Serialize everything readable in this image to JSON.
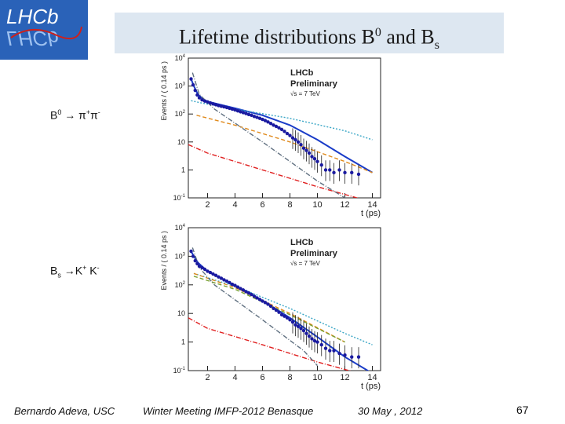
{
  "slide": {
    "logo_text": "LHCb",
    "title_main": "Lifetime distributions B",
    "title_sup": "0",
    "title_and": " and B",
    "title_sub": "s",
    "decay_b0": {
      "head": "B",
      "sup": "0",
      "rest": " → π",
      "sup2": "+",
      "tail": "π",
      "sup3": "-"
    },
    "decay_bs": {
      "head": "B",
      "sub": "s",
      "rest": " →K",
      "sup2": "+",
      "tail": " K",
      "sup3": "-"
    },
    "footer_author": "Bernardo Adeva, USC",
    "footer_meeting": "Winter Meeting IMFP-2012  Benasque",
    "footer_date": "30 May , 2012",
    "page_number": "67"
  },
  "colors": {
    "logo_bg": "#2a62b8",
    "title_band": "#dde7f1",
    "data_points": "#1a1aa0",
    "total_fit": "#1a3cc8",
    "cyan_dotted": "#3aa6c6",
    "orange_dashed": "#e08a1c",
    "red_dashdot": "#e02020",
    "grey_dashdot": "#607080",
    "green_dashed": "#7aa030"
  },
  "chart_data": [
    {
      "type": "scatter",
      "name": "B0 → π+π-",
      "xlabel": "t (ps)",
      "ylabel": "Events / ( 0.14 ps )",
      "yscale": "log",
      "xlim": [
        0.6,
        14.6
      ],
      "ylim": [
        0.1,
        10000
      ],
      "xticks": [
        "2",
        "4",
        "6",
        "8",
        "10",
        "12",
        "14"
      ],
      "yticks": [
        "10^-1",
        "1",
        "10",
        "10^2",
        "10^3",
        "10^4"
      ],
      "legend_text": [
        "LHCb",
        "Preliminary",
        "√s = 7 TeV"
      ],
      "legend_position": "top-right",
      "points": {
        "x": [
          0.8,
          0.95,
          1.1,
          1.25,
          1.4,
          1.6,
          1.8,
          2.0,
          2.2,
          2.4,
          2.6,
          2.8,
          3.0,
          3.2,
          3.4,
          3.6,
          3.8,
          4.0,
          4.2,
          4.4,
          4.6,
          4.8,
          5.0,
          5.2,
          5.4,
          5.6,
          5.8,
          6.0,
          6.2,
          6.4,
          6.6,
          6.8,
          7.0,
          7.2,
          7.4,
          7.6,
          7.8,
          8.0,
          8.2,
          8.4,
          8.6,
          8.8,
          9.0,
          9.2,
          9.4,
          9.6,
          9.8,
          10.0,
          10.3,
          10.6,
          10.9,
          11.2,
          11.6,
          12.0,
          12.5,
          13.0
        ],
        "y": [
          1800,
          1100,
          700,
          480,
          380,
          320,
          290,
          270,
          250,
          230,
          215,
          200,
          190,
          180,
          170,
          160,
          150,
          140,
          130,
          120,
          112,
          104,
          96,
          90,
          82,
          76,
          70,
          64,
          58,
          52,
          46,
          40,
          36,
          32,
          28,
          24,
          20,
          17,
          14,
          12,
          10,
          8,
          6,
          5,
          4,
          3,
          2.5,
          2,
          1.5,
          1,
          1,
          0.8,
          1,
          0.8,
          0.8,
          0.7
        ]
      },
      "curves": [
        {
          "style": "total fit",
          "x": [
            0.8,
            1.0,
            1.3,
            1.7,
            2.0,
            4.0,
            6.0,
            8.0,
            10.0,
            12.0,
            14.0
          ],
          "y": [
            1800,
            1000,
            500,
            330,
            280,
            160,
            90,
            40,
            12,
            3,
            0.8
          ]
        },
        {
          "style": "cyan dotted",
          "x": [
            0.8,
            1.5,
            4.0,
            8.0,
            12.0,
            14.0
          ],
          "y": [
            300,
            250,
            150,
            70,
            25,
            12
          ]
        },
        {
          "style": "orange dashed",
          "x": [
            1.2,
            4.0,
            8.0,
            12.0,
            14.0
          ],
          "y": [
            90,
            40,
            10,
            2,
            0.8
          ]
        },
        {
          "style": "red dash-dot",
          "x": [
            0.6,
            2.0,
            6.0,
            10.0,
            14.0
          ],
          "y": [
            8,
            4,
            1,
            0.25,
            0.07
          ]
        },
        {
          "style": "grey dash-dot",
          "x": [
            0.9,
            1.4,
            2.5,
            6.0,
            10.0,
            12.0
          ],
          "y": [
            3000,
            500,
            150,
            10,
            0.4,
            0.1
          ]
        }
      ]
    },
    {
      "type": "scatter",
      "name": "Bs →K+ K-",
      "xlabel": "t (ps)",
      "ylabel": "Events / ( 0.14 ps )",
      "yscale": "log",
      "xlim": [
        0.6,
        14.6
      ],
      "ylim": [
        0.1,
        10000
      ],
      "xticks": [
        "2",
        "4",
        "6",
        "8",
        "10",
        "12",
        "14"
      ],
      "yticks": [
        "10^-1",
        "1",
        "10",
        "10^2",
        "10^3",
        "10^4"
      ],
      "legend_text": [
        "LHCb",
        "Preliminary",
        "√s = 7 TeV"
      ],
      "legend_position": "top-right",
      "points": {
        "x": [
          0.8,
          0.95,
          1.1,
          1.25,
          1.4,
          1.6,
          1.8,
          2.0,
          2.2,
          2.4,
          2.6,
          2.8,
          3.0,
          3.2,
          3.4,
          3.6,
          3.8,
          4.0,
          4.2,
          4.4,
          4.6,
          4.8,
          5.0,
          5.2,
          5.4,
          5.6,
          5.8,
          6.0,
          6.2,
          6.4,
          6.6,
          6.8,
          7.0,
          7.2,
          7.4,
          7.6,
          7.8,
          8.0,
          8.2,
          8.4,
          8.6,
          8.8,
          9.0,
          9.2,
          9.4,
          9.6,
          9.8,
          10.0,
          10.3,
          10.6,
          10.9,
          11.2,
          11.6,
          12.0,
          12.5,
          13.0
        ],
        "y": [
          1500,
          1000,
          700,
          550,
          450,
          400,
          350,
          300,
          270,
          240,
          215,
          190,
          170,
          150,
          135,
          120,
          105,
          95,
          84,
          74,
          66,
          58,
          52,
          46,
          40,
          35,
          31,
          27,
          24,
          21,
          18,
          15,
          13,
          11,
          9,
          8,
          7,
          6,
          5,
          4,
          3.5,
          3,
          2.5,
          2,
          1.6,
          1.3,
          1.1,
          1,
          0.8,
          0.6,
          0.5,
          0.5,
          0.4,
          0.35,
          0.3,
          0.3
        ]
      },
      "curves": [
        {
          "style": "total fit",
          "x": [
            0.8,
            1.0,
            1.3,
            1.7,
            2.0,
            4.0,
            6.0,
            8.0,
            10.0,
            12.0,
            14.0
          ],
          "y": [
            1500,
            1000,
            600,
            400,
            300,
            95,
            28,
            7,
            1.5,
            0.3,
            0.08
          ]
        },
        {
          "style": "cyan dotted",
          "x": [
            1.0,
            4.0,
            8.0,
            12.0,
            14.0
          ],
          "y": [
            250,
            90,
            15,
            2,
            0.8
          ]
        },
        {
          "style": "orange dashed",
          "x": [
            1.0,
            4.0,
            8.0,
            12.0
          ],
          "y": [
            250,
            80,
            10,
            1
          ]
        },
        {
          "style": "green dashed",
          "x": [
            1.0,
            4.0,
            8.0,
            12.0
          ],
          "y": [
            200,
            70,
            9,
            1
          ]
        },
        {
          "style": "red dash-dot",
          "x": [
            0.6,
            2.0,
            6.0,
            10.0,
            14.0
          ],
          "y": [
            7,
            3,
            0.8,
            0.2,
            0.06
          ]
        },
        {
          "style": "grey dash-dot",
          "x": [
            0.9,
            1.4,
            2.5,
            6.0,
            9.0,
            10.0
          ],
          "y": [
            2000,
            400,
            100,
            6,
            0.5,
            0.15
          ]
        }
      ]
    }
  ]
}
